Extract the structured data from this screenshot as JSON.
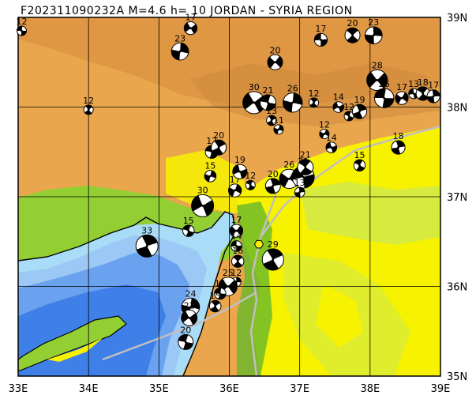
{
  "title": "F202311090232A M=4.6 h= 10 JORDAN - SYRIA REGION",
  "axes": {
    "x_ticks": [
      "33E",
      "34E",
      "35E",
      "36E",
      "37E",
      "38E",
      "39E"
    ],
    "y_ticks": [
      "39N",
      "38N",
      "37N",
      "36N",
      "35N"
    ],
    "lon_range": [
      33,
      39
    ],
    "lat_range": [
      35,
      39
    ]
  },
  "colors": {
    "deep_sea": "#3f7fe8",
    "mid_sea": "#6aa2f0",
    "shallow_sea": "#9cc8f6",
    "coast_shelf": "#a9dcf7",
    "lowland": "#f7f200",
    "plain": "#c9e85a",
    "green": "#93cf33",
    "dark_green": "#66b82a",
    "highland": "#e9a64d",
    "plateau": "#d98a3c",
    "mountain": "#c9843c",
    "grid": "#000000",
    "fault": "#c0c0c0",
    "epicenter": "#fff200"
  },
  "epicenter": {
    "lon": 36.42,
    "lat": 36.47,
    "icon": "hexagon-epicenter-icon"
  },
  "mechanisms": [
    {
      "lon": 33.05,
      "lat": 38.85,
      "mag": "12"
    },
    {
      "lon": 34.0,
      "lat": 37.97,
      "mag": "12"
    },
    {
      "lon": 35.3,
      "lat": 38.62,
      "mag": "23"
    },
    {
      "lon": 35.45,
      "lat": 38.88,
      "mag": "17"
    },
    {
      "lon": 35.75,
      "lat": 37.5,
      "mag": "17"
    },
    {
      "lon": 35.85,
      "lat": 37.55,
      "mag": "20"
    },
    {
      "lon": 35.73,
      "lat": 37.23,
      "mag": "15"
    },
    {
      "lon": 35.62,
      "lat": 36.9,
      "mag": "30"
    },
    {
      "lon": 35.42,
      "lat": 36.62,
      "mag": "15"
    },
    {
      "lon": 34.83,
      "lat": 36.45,
      "mag": "33"
    },
    {
      "lon": 36.08,
      "lat": 37.07,
      "mag": "17"
    },
    {
      "lon": 36.15,
      "lat": 37.28,
      "mag": "19"
    },
    {
      "lon": 36.3,
      "lat": 37.13,
      "mag": "12"
    },
    {
      "lon": 36.62,
      "lat": 37.12,
      "mag": "20"
    },
    {
      "lon": 36.85,
      "lat": 37.2,
      "mag": "26"
    },
    {
      "lon": 37.05,
      "lat": 37.22,
      "mag": "31"
    },
    {
      "lon": 37.08,
      "lat": 37.33,
      "mag": "21"
    },
    {
      "lon": 37.0,
      "lat": 37.05,
      "mag": "13"
    },
    {
      "lon": 36.65,
      "lat": 38.5,
      "mag": "20"
    },
    {
      "lon": 37.3,
      "lat": 38.75,
      "mag": "17"
    },
    {
      "lon": 37.75,
      "lat": 38.8,
      "mag": "20"
    },
    {
      "lon": 38.05,
      "lat": 38.8,
      "mag": "23"
    },
    {
      "lon": 38.1,
      "lat": 38.3,
      "mag": "28"
    },
    {
      "lon": 38.2,
      "lat": 38.1,
      "mag": "26"
    },
    {
      "lon": 37.2,
      "lat": 38.05,
      "mag": "12"
    },
    {
      "lon": 36.9,
      "lat": 38.05,
      "mag": "26"
    },
    {
      "lon": 36.35,
      "lat": 38.05,
      "mag": "30"
    },
    {
      "lon": 36.55,
      "lat": 38.05,
      "mag": "21"
    },
    {
      "lon": 36.6,
      "lat": 37.85,
      "mag": "13"
    },
    {
      "lon": 36.7,
      "lat": 37.75,
      "mag": "11"
    },
    {
      "lon": 37.55,
      "lat": 38.0,
      "mag": "14"
    },
    {
      "lon": 37.7,
      "lat": 37.9,
      "mag": "12"
    },
    {
      "lon": 37.85,
      "lat": 37.95,
      "mag": "19"
    },
    {
      "lon": 37.35,
      "lat": 37.7,
      "mag": "12"
    },
    {
      "lon": 37.45,
      "lat": 37.55,
      "mag": "14"
    },
    {
      "lon": 37.85,
      "lat": 37.35,
      "mag": "15"
    },
    {
      "lon": 38.4,
      "lat": 37.55,
      "mag": "18"
    },
    {
      "lon": 38.45,
      "lat": 38.1,
      "mag": "17"
    },
    {
      "lon": 38.62,
      "lat": 38.15,
      "mag": "13"
    },
    {
      "lon": 38.75,
      "lat": 38.15,
      "mag": "18"
    },
    {
      "lon": 38.9,
      "lat": 38.12,
      "mag": "17"
    },
    {
      "lon": 36.1,
      "lat": 36.62,
      "mag": "17"
    },
    {
      "lon": 36.1,
      "lat": 36.45,
      "mag": "14"
    },
    {
      "lon": 36.12,
      "lat": 36.28,
      "mag": "16"
    },
    {
      "lon": 36.1,
      "lat": 36.05,
      "mag": "12"
    },
    {
      "lon": 35.98,
      "lat": 36.0,
      "mag": "25"
    },
    {
      "lon": 35.87,
      "lat": 35.92,
      "mag": "15"
    },
    {
      "lon": 35.8,
      "lat": 35.78,
      "mag": "15"
    },
    {
      "lon": 35.45,
      "lat": 35.77,
      "mag": "24"
    },
    {
      "lon": 35.43,
      "lat": 35.65,
      "mag": "21"
    },
    {
      "lon": 35.38,
      "lat": 35.38,
      "mag": "20"
    },
    {
      "lon": 36.62,
      "lat": 36.3,
      "mag": "29"
    }
  ]
}
